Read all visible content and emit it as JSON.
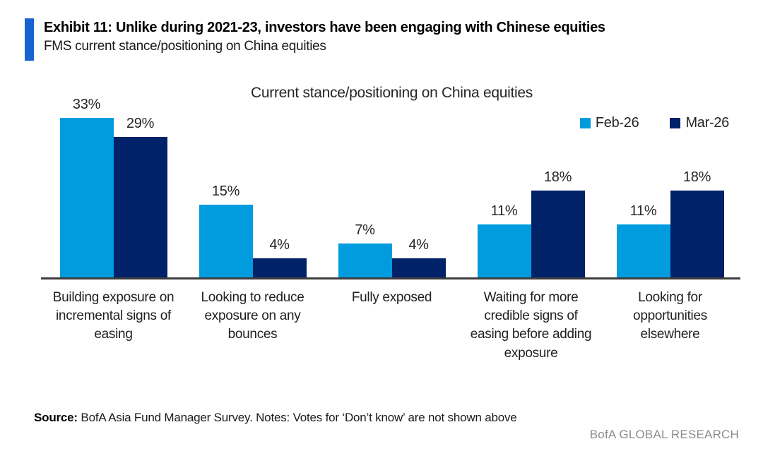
{
  "header": {
    "exhibit_title": "Exhibit 11: Unlike during 2021-23, investors have been engaging with Chinese equities",
    "subtitle": "FMS current stance/positioning on China equities"
  },
  "chart_data": {
    "type": "bar",
    "title": "Current stance/positioning on China equities",
    "categories": [
      "Building exposure on incremental signs of easing",
      "Looking to reduce exposure on any bounces",
      "Fully exposed",
      "Waiting for more credible signs of easing before adding exposure",
      "Looking for opportunities elsewhere"
    ],
    "series": [
      {
        "name": "Feb-26",
        "color": "#009cde",
        "values": [
          33,
          15,
          7,
          11,
          11
        ]
      },
      {
        "name": "Mar-26",
        "color": "#012169",
        "values": [
          29,
          4,
          4,
          18,
          18
        ]
      }
    ],
    "value_suffix": "%",
    "ylim": [
      0,
      35
    ],
    "grid": false,
    "legend_position": "top-right",
    "data_labels": true
  },
  "footer": {
    "source_label": "Source:",
    "source_text": " BofA Asia Fund Manager Survey. Notes: Votes for ‘Don’t know’ are not shown above",
    "branding": "BofA GLOBAL RESEARCH"
  },
  "colors": {
    "accent_bar": "#1763d2",
    "feb_26": "#009cde",
    "mar_26": "#012169",
    "axis_line": "#3d3d3d",
    "branding_gray": "#8c8c8c"
  }
}
